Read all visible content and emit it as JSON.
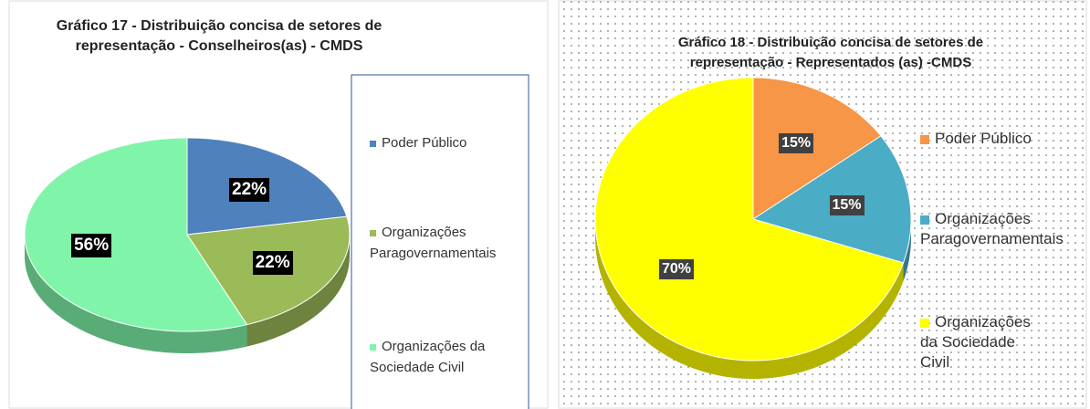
{
  "chart_data": [
    {
      "type": "pie3d",
      "title": "Gráfico 17 - Distribuição concisa de setores de representação - Conselheiros(as)  - CMDS",
      "categories": [
        "Poder Público",
        "Organizações Paragovernamentais",
        "Organizações da Sociedade Civil"
      ],
      "values": [
        22,
        22,
        56
      ],
      "value_labels": [
        "22%",
        "22%",
        "56%"
      ],
      "colors": [
        "#4f81bd",
        "#9bbb59",
        "#80f5aa"
      ]
    },
    {
      "type": "pie3d",
      "title": "Gráfico 18 - Distribuição concisa de setores de representação - Representados (as) -CMDS",
      "categories": [
        "Poder Público",
        "Organizações Paragovernamentais",
        "Organizações da Sociedade Civil"
      ],
      "values": [
        15,
        15,
        70
      ],
      "value_labels": [
        "15%",
        "15%",
        "70%"
      ],
      "colors": [
        "#f79646",
        "#4bacc6",
        "#ffff00"
      ]
    }
  ]
}
